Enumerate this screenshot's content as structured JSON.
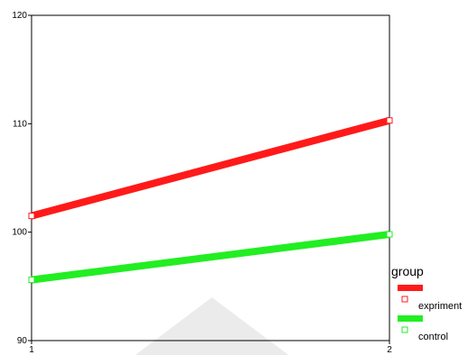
{
  "chart_data": {
    "type": "line",
    "x": [
      1,
      2
    ],
    "x_ticks": [
      "1",
      "2"
    ],
    "y_ticks": [
      "90",
      "100",
      "110",
      "120"
    ],
    "ylim": [
      90,
      120
    ],
    "grid": false,
    "legend_title": "group",
    "legend_position": "right",
    "series": [
      {
        "name": "expriment",
        "values": [
          101.5,
          110.3
        ],
        "color": "#ff1a1a"
      },
      {
        "name": "control",
        "values": [
          95.6,
          99.8
        ],
        "color": "#22ee22"
      }
    ]
  }
}
